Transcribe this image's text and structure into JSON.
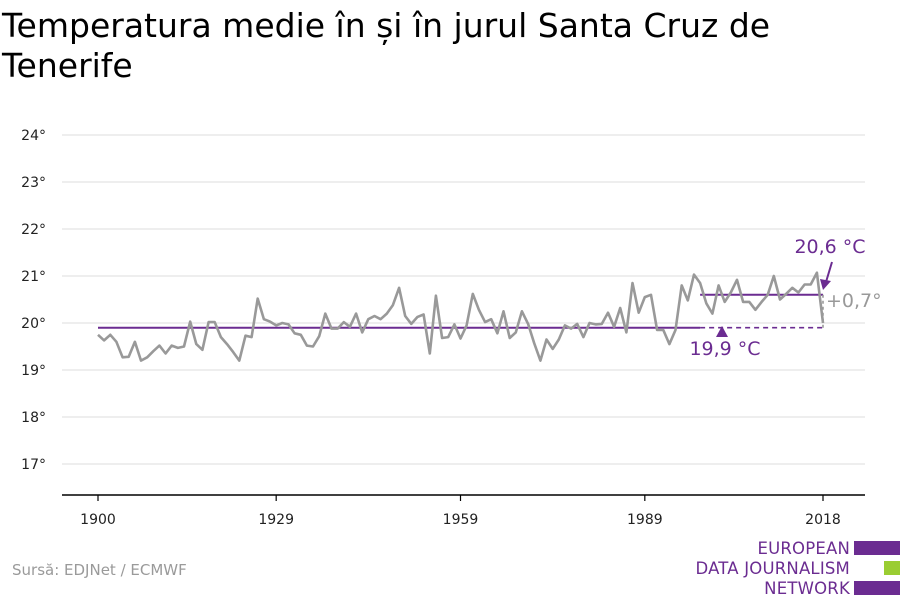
{
  "title": "Temperatura medie în și în jurul Santa Cruz de Tenerife",
  "source": "Sursă: EDJNet / ECMWF",
  "logo": {
    "lines": [
      "EUROPEAN",
      "DATA JOURNALISM",
      "NETWORK"
    ],
    "colors": [
      "#6b2c91",
      "#9acd32",
      "#6b2c91"
    ]
  },
  "colors": {
    "series": "#999999",
    "accent": "#6b2c91",
    "grid": "#dddddd",
    "axis": "#000000"
  },
  "chart_data": {
    "type": "line",
    "title": "Temperatura medie în și în jurul Santa Cruz de Tenerife",
    "xlabel": "",
    "ylabel": "",
    "xlim": [
      1900,
      2018
    ],
    "ylim": [
      16.5,
      24.3
    ],
    "x_ticks": [
      1900,
      1929,
      1959,
      1989,
      2018
    ],
    "y_ticks": [
      17,
      18,
      19,
      20,
      21,
      22,
      23,
      24
    ],
    "y_tick_labels": [
      "17°",
      "18°",
      "19°",
      "20°",
      "21°",
      "22°",
      "23°",
      "24°"
    ],
    "grid": true,
    "series": [
      {
        "x": [
          1900,
          1901,
          1902,
          1903,
          1904,
          1905,
          1906,
          1907,
          1908,
          1909,
          1910,
          1911,
          1912,
          1913,
          1914,
          1915,
          1916,
          1917,
          1918,
          1919,
          1920,
          1921,
          1922,
          1923,
          1924,
          1925,
          1926,
          1927,
          1928,
          1929,
          1930,
          1931,
          1932,
          1933,
          1934,
          1935,
          1936,
          1937,
          1938,
          1939,
          1940,
          1941,
          1942,
          1943,
          1944,
          1945,
          1946,
          1947,
          1948,
          1949,
          1950,
          1951,
          1952,
          1953,
          1954,
          1955,
          1956,
          1957,
          1958,
          1959,
          1960,
          1961,
          1962,
          1963,
          1964,
          1965,
          1966,
          1967,
          1968,
          1969,
          1970,
          1971,
          1972,
          1973,
          1974,
          1975,
          1976,
          1977,
          1978,
          1979,
          1980,
          1981,
          1982,
          1983,
          1984,
          1985,
          1986,
          1987,
          1988,
          1989,
          1990,
          1991,
          1992,
          1993,
          1994,
          1995,
          1996,
          1997,
          1998,
          1999,
          2000,
          2001,
          2002,
          2003,
          2004,
          2005,
          2006,
          2007,
          2008,
          2009,
          2010,
          2011,
          2012,
          2013,
          2014,
          2015,
          2016,
          2017,
          2018
        ],
        "values": [
          19.75,
          19.63,
          19.75,
          19.6,
          19.27,
          19.28,
          19.6,
          19.2,
          19.27,
          19.4,
          19.52,
          19.35,
          19.52,
          19.47,
          19.5,
          20.03,
          19.55,
          19.43,
          20.02,
          20.02,
          19.7,
          19.55,
          19.38,
          19.2,
          19.73,
          19.7,
          20.52,
          20.08,
          20.03,
          19.95,
          20.0,
          19.97,
          19.78,
          19.75,
          19.52,
          19.5,
          19.72,
          20.2,
          19.88,
          19.88,
          20.02,
          19.92,
          20.2,
          19.8,
          20.08,
          20.15,
          20.08,
          20.2,
          20.38,
          20.75,
          20.15,
          19.98,
          20.13,
          20.18,
          19.35,
          20.58,
          19.68,
          19.7,
          19.97,
          19.67,
          19.95,
          20.62,
          20.28,
          20.02,
          20.08,
          19.78,
          20.25,
          19.68,
          19.8,
          20.25,
          19.98,
          19.57,
          19.2,
          19.65,
          19.45,
          19.65,
          19.95,
          19.88,
          19.98,
          19.7,
          20.0,
          19.97,
          19.98,
          20.22,
          19.92,
          20.32,
          19.8,
          20.85,
          20.22,
          20.55,
          20.6,
          19.85,
          19.85,
          19.55,
          19.85,
          20.8,
          20.48,
          21.03,
          20.85,
          20.42,
          20.2,
          20.8,
          20.45,
          20.65,
          20.92,
          20.45,
          20.45,
          20.28,
          20.45,
          20.6,
          21.0,
          20.5,
          20.62,
          20.75,
          20.65,
          20.82,
          20.82,
          21.07,
          20.0
        ]
      }
    ],
    "annotations": {
      "baseline": {
        "value": 19.9,
        "x_start": 1900,
        "x_end": 2018,
        "dash_from": 1998,
        "label": "19,9 °C"
      },
      "recent": {
        "value": 20.6,
        "x_start": 1998,
        "x_end": 2018,
        "label": "20,6 °C"
      },
      "diff_label": "+0,7°"
    }
  }
}
